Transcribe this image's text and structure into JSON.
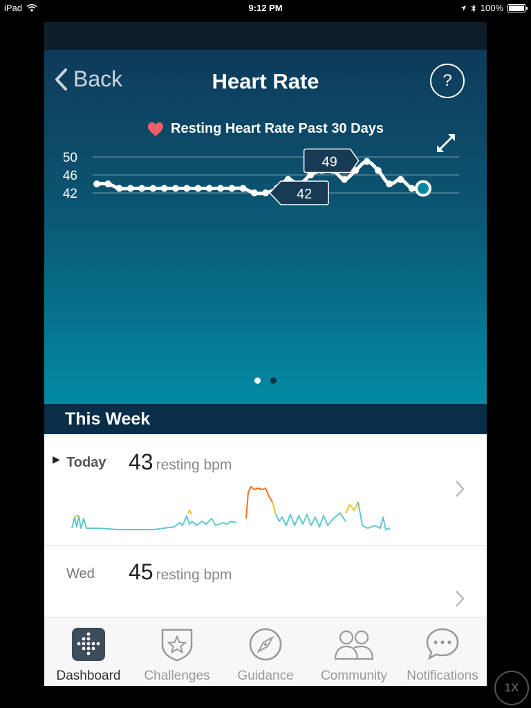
{
  "status": {
    "device": "iPad",
    "time": "9:12 PM",
    "battery": "100%"
  },
  "nav": {
    "back_label": "Back",
    "title": "Heart Rate",
    "help_label": "?"
  },
  "chart_title": "Resting Heart Rate Past 30 Days",
  "chart_data": {
    "type": "line",
    "title": "Resting Heart Rate Past 30 Days",
    "x": [
      1,
      2,
      3,
      4,
      5,
      6,
      7,
      8,
      9,
      10,
      11,
      12,
      13,
      14,
      15,
      16,
      17,
      18,
      19,
      20,
      21,
      22,
      23,
      24,
      25,
      26,
      27,
      28,
      29,
      30
    ],
    "values": [
      44,
      44,
      43,
      43,
      43,
      43,
      43,
      43,
      43,
      43,
      43,
      43,
      43,
      43,
      42,
      42,
      43,
      45,
      44,
      46,
      47,
      47,
      45,
      47,
      49,
      47,
      44,
      45,
      43,
      43
    ],
    "yticks": [
      42,
      46,
      50
    ],
    "ylim": [
      41,
      50.5
    ],
    "grid": true,
    "max_callout": {
      "label": "49",
      "index": 24
    },
    "min_callout": {
      "label": "42",
      "index": 15
    }
  },
  "pager": {
    "pages": 2,
    "active": 0
  },
  "week": {
    "title": "This Week",
    "rows": [
      {
        "day": "Today",
        "bpm": "43",
        "unit": "resting bpm"
      },
      {
        "day": "Wed",
        "bpm": "45",
        "unit": "resting bpm"
      }
    ]
  },
  "tabs": [
    {
      "label": "Dashboard",
      "icon": "dashboard-icon"
    },
    {
      "label": "Challenges",
      "icon": "challenges-star-icon"
    },
    {
      "label": "Guidance",
      "icon": "compass-icon"
    },
    {
      "label": "Community",
      "icon": "community-people-icon"
    },
    {
      "label": "Notifications",
      "icon": "speech-bubble-icon"
    }
  ],
  "active_tab": 0,
  "zoom_label": "1X",
  "colors": {
    "hero_top": "#0f3a5a",
    "hero_bottom": "#048aa3",
    "week_bar": "#0b2e48",
    "heart": "#f0606a",
    "trace_normal": "#5ec8cc",
    "trace_elevated": "#f0c020",
    "trace_high": "#f07020"
  }
}
